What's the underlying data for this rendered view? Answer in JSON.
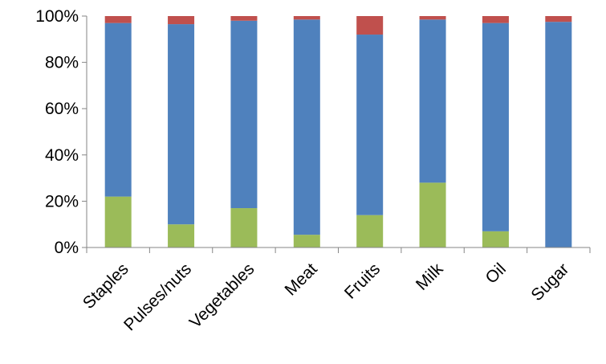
{
  "chart_data": {
    "type": "bar",
    "stacked": true,
    "percent": true,
    "categories": [
      "Staples",
      "Pulses/nuts",
      "Vegetables",
      "Meat",
      "Fruits",
      "Milk",
      "Oil",
      "Sugar"
    ],
    "series": [
      {
        "color": "#9BBB59",
        "values": [
          22,
          10,
          17,
          5.5,
          14,
          28,
          7,
          0
        ]
      },
      {
        "color": "#4F81BD",
        "values": [
          75,
          86.5,
          81,
          93,
          78,
          70.5,
          90,
          97.5
        ]
      },
      {
        "color": "#C0504D",
        "values": [
          3,
          3.5,
          2,
          1.5,
          8,
          1.5,
          3,
          2.5
        ]
      }
    ],
    "yaxis": {
      "ylim": [
        0,
        100
      ],
      "ticks": [
        {
          "value": 0,
          "label": "0%"
        },
        {
          "value": 20,
          "label": "20%"
        },
        {
          "value": 40,
          "label": "40%"
        },
        {
          "value": 60,
          "label": "60%"
        },
        {
          "value": 80,
          "label": "80%"
        },
        {
          "value": 100,
          "label": "100%"
        }
      ]
    },
    "grid": false,
    "legend": "none"
  }
}
